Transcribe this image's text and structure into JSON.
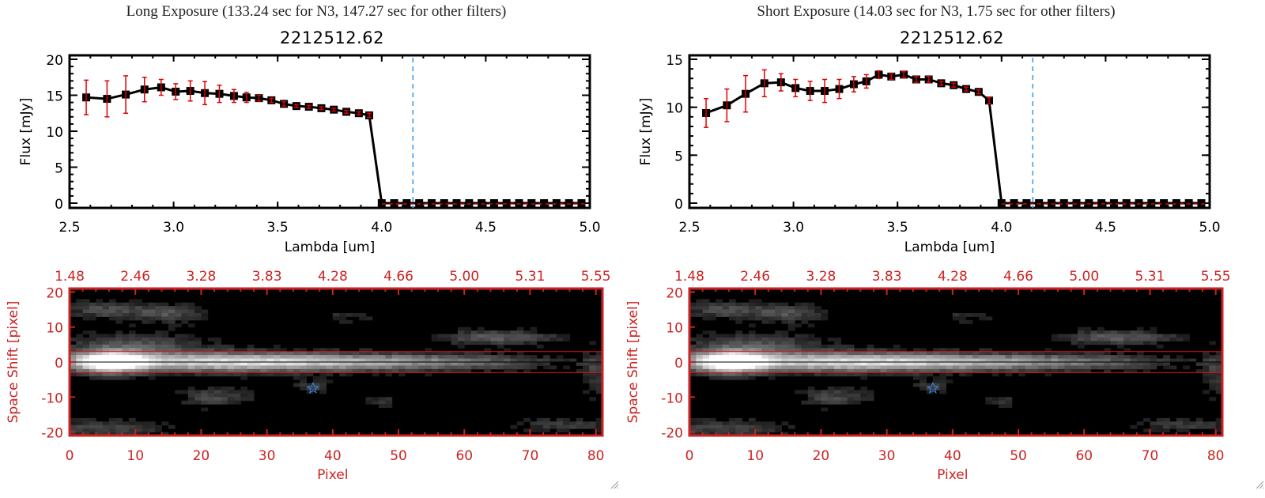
{
  "colors": {
    "line": "#000000",
    "errorbar": "#e00000",
    "cutoff_line": "#3399ee",
    "zero_line": "#e00000",
    "image_axes": "#cc2222",
    "aperture_lines": "#dd1111",
    "star_marker": "#3388ee"
  },
  "chart_data": [
    {
      "type": "line",
      "panel": "long",
      "title": "Long Exposure (133.24 sec for N3, 147.27 sec for other filters)",
      "subtitle": "2212512.62",
      "xlabel": "Lambda [um]",
      "ylabel": "Flux [mJy]",
      "xlim": [
        2.5,
        5.0
      ],
      "ylim": [
        0,
        20
      ],
      "xticks": [
        "2.5",
        "3.0",
        "3.5",
        "4.0",
        "4.5",
        "5.0"
      ],
      "yticks": [
        "0",
        "5",
        "10",
        "15",
        "20"
      ],
      "cutoff_lambda": 4.15,
      "series": [
        {
          "name": "flux",
          "x": [
            2.58,
            2.68,
            2.77,
            2.86,
            2.94,
            3.01,
            3.08,
            3.15,
            3.22,
            3.29,
            3.35,
            3.41,
            3.47,
            3.53,
            3.59,
            3.65,
            3.71,
            3.77,
            3.83,
            3.89,
            3.94,
            4.0,
            4.06,
            4.12,
            4.18,
            4.24,
            4.3,
            4.36,
            4.42,
            4.48,
            4.54,
            4.6,
            4.66,
            4.72,
            4.78,
            4.84,
            4.9,
            4.96
          ],
          "y": [
            14.7,
            14.5,
            15.1,
            15.8,
            16.1,
            15.5,
            15.6,
            15.3,
            15.2,
            14.9,
            14.7,
            14.6,
            14.3,
            13.8,
            13.5,
            13.4,
            13.2,
            13.0,
            12.7,
            12.5,
            12.2,
            0,
            0,
            0,
            0,
            0,
            0,
            0,
            0,
            0,
            0,
            0,
            0,
            0,
            0,
            0,
            0,
            0
          ],
          "err": [
            2.4,
            2.5,
            2.6,
            1.7,
            1.1,
            1.1,
            1.4,
            1.6,
            1.2,
            0.9,
            0.7,
            0.4,
            0.3,
            0.3,
            0.2,
            0.2,
            0.2,
            0.2,
            0.2,
            0.2,
            0.3,
            0,
            0,
            0,
            0,
            0,
            0,
            0,
            0,
            0,
            0,
            0,
            0,
            0,
            0,
            0,
            0,
            0
          ]
        }
      ]
    },
    {
      "type": "line",
      "panel": "short",
      "title": "Short Exposure (14.03 sec for N3, 1.75 sec for other filters)",
      "subtitle": "2212512.62",
      "xlabel": "Lambda [um]",
      "ylabel": "Flux [mJy]",
      "xlim": [
        2.5,
        5.0
      ],
      "ylim": [
        0,
        15
      ],
      "xticks": [
        "2.5",
        "3.0",
        "3.5",
        "4.0",
        "4.5",
        "5.0"
      ],
      "yticks": [
        "0",
        "5",
        "10",
        "15"
      ],
      "cutoff_lambda": 4.15,
      "series": [
        {
          "name": "flux",
          "x": [
            2.58,
            2.68,
            2.77,
            2.86,
            2.94,
            3.01,
            3.08,
            3.15,
            3.22,
            3.29,
            3.35,
            3.41,
            3.47,
            3.53,
            3.59,
            3.65,
            3.71,
            3.77,
            3.83,
            3.89,
            3.94,
            4.0,
            4.06,
            4.12,
            4.18,
            4.24,
            4.3,
            4.36,
            4.42,
            4.48,
            4.54,
            4.6,
            4.66,
            4.72,
            4.78,
            4.84,
            4.9,
            4.96
          ],
          "y": [
            9.4,
            10.2,
            11.4,
            12.5,
            12.6,
            12.0,
            11.7,
            11.7,
            11.9,
            12.4,
            12.7,
            13.4,
            13.2,
            13.4,
            12.9,
            12.9,
            12.5,
            12.3,
            11.9,
            11.6,
            10.7,
            0,
            0,
            0,
            0,
            0,
            0,
            0,
            0,
            0,
            0,
            0,
            0,
            0,
            0,
            0,
            0,
            0
          ],
          "err": [
            1.5,
            1.7,
            1.9,
            1.4,
            0.9,
            0.9,
            1.0,
            1.2,
            1.0,
            0.8,
            0.7,
            0.4,
            0.3,
            0.3,
            0.3,
            0.3,
            0.2,
            0.2,
            0.2,
            0.2,
            0.3,
            0,
            0,
            0,
            0,
            0,
            0,
            0,
            0,
            0,
            0,
            0,
            0,
            0,
            0,
            0,
            0,
            0
          ]
        }
      ]
    },
    {
      "type": "heatmap",
      "panel": "long-image",
      "xlabel": "Pixel",
      "ylabel": "Space Shift [pixel]",
      "xlim": [
        0,
        81
      ],
      "ylim": [
        -21,
        21
      ],
      "xticks": [
        "0",
        "10",
        "20",
        "30",
        "40",
        "50",
        "60",
        "70",
        "80"
      ],
      "yticks": [
        "20",
        "10",
        "0",
        "-10",
        "-20"
      ],
      "top_ticks": [
        "1.48",
        "2.46",
        "3.28",
        "3.83",
        "4.28",
        "4.66",
        "5.00",
        "5.31",
        "5.55"
      ],
      "aperture": [
        -3,
        3
      ],
      "star": {
        "x": 37,
        "y": -7.5
      }
    },
    {
      "type": "heatmap",
      "panel": "short-image",
      "xlabel": "Pixel",
      "ylabel": "Space Shift [pixel]",
      "xlim": [
        0,
        81
      ],
      "ylim": [
        -21,
        21
      ],
      "xticks": [
        "0",
        "10",
        "20",
        "30",
        "40",
        "50",
        "60",
        "70",
        "80"
      ],
      "yticks": [
        "20",
        "10",
        "0",
        "-10",
        "-20"
      ],
      "top_ticks": [
        "1.48",
        "2.46",
        "3.28",
        "3.83",
        "4.28",
        "4.66",
        "5.00",
        "5.31",
        "5.55"
      ],
      "aperture": [
        -3,
        3
      ],
      "star": {
        "x": 37,
        "y": -7.5
      }
    }
  ]
}
